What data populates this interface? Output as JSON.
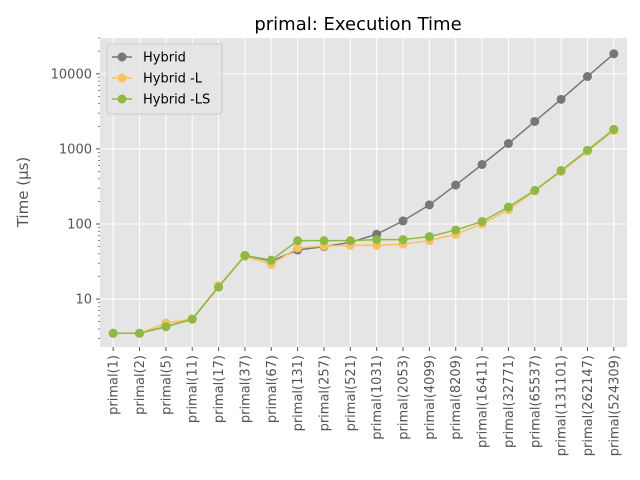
{
  "chart_data": {
    "type": "line",
    "title": "primal: Execution Time",
    "xlabel": "",
    "ylabel": "Time (µs)",
    "yscale": "log",
    "ylim": [
      2.3,
      30000
    ],
    "yticks": [
      10,
      100,
      1000,
      10000
    ],
    "grid": true,
    "legend": "top-left",
    "categories": [
      "primal(1)",
      "primal(2)",
      "primal(5)",
      "primal(11)",
      "primal(17)",
      "primal(37)",
      "primal(67)",
      "primal(131)",
      "primal(257)",
      "primal(521)",
      "primal(1031)",
      "primal(2053)",
      "primal(4099)",
      "primal(8209)",
      "primal(16411)",
      "primal(32771)",
      "primal(65537)",
      "primal(131101)",
      "primal(262147)",
      "primal(524309)"
    ],
    "series": [
      {
        "name": "Hybrid",
        "color": "#777777",
        "values": [
          3.5,
          3.5,
          4.3,
          5.4,
          14.5,
          38,
          32,
          45,
          50,
          57,
          73,
          110,
          180,
          330,
          620,
          1180,
          2320,
          4570,
          9200,
          18500
        ]
      },
      {
        "name": "Hybrid -L",
        "color": "#fbc15e",
        "values": [
          3.5,
          3.5,
          4.8,
          5.4,
          15,
          37,
          29,
          48,
          51,
          52,
          52,
          54,
          60,
          73,
          100,
          155,
          275,
          500,
          930,
          1760
        ]
      },
      {
        "name": "Hybrid -LS",
        "color": "#8eba42",
        "values": [
          3.5,
          3.5,
          4.3,
          5.4,
          14.5,
          38,
          33,
          60,
          60,
          60,
          62,
          62,
          68,
          83,
          108,
          168,
          280,
          515,
          960,
          1820
        ]
      }
    ]
  }
}
